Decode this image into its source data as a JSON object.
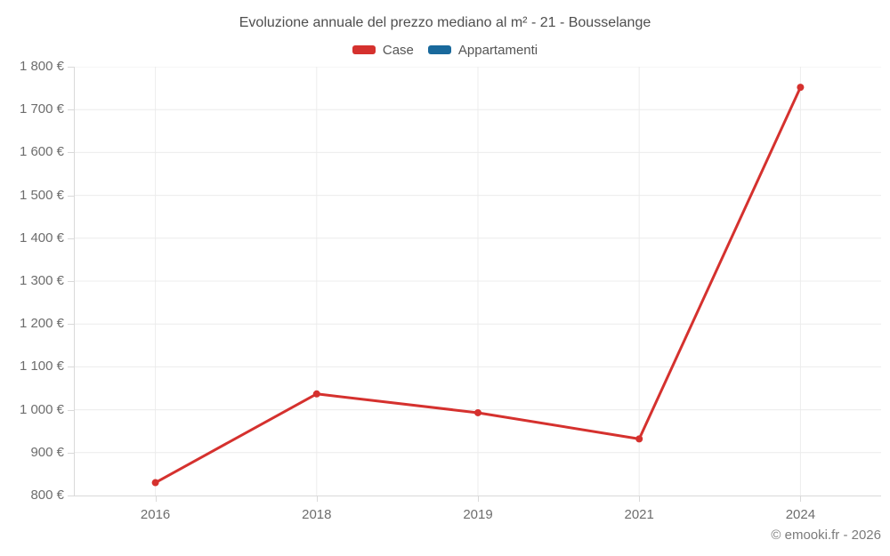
{
  "title": "Evoluzione annuale del prezzo mediano al m² - 21 - Bousselange",
  "footer": "© emooki.fr - 2026",
  "legend": [
    {
      "label": "Case",
      "color": "#d5312e"
    },
    {
      "label": "Appartamenti",
      "color": "#19699c"
    }
  ],
  "chart_data": {
    "type": "line",
    "categories": [
      "2016",
      "2018",
      "2019",
      "2021",
      "2024"
    ],
    "series": [
      {
        "name": "Case",
        "color": "#d5312e",
        "values": [
          830,
          1037,
          993,
          932,
          1752
        ]
      },
      {
        "name": "Appartamenti",
        "color": "#19699c",
        "values": []
      }
    ],
    "title": "Evoluzione annuale del prezzo mediano al m² - 21 - Bousselange",
    "xlabel": "",
    "ylabel": "",
    "ylim": [
      800,
      1800
    ],
    "ytick_step": 100,
    "ytick_labels": [
      "800 €",
      "900 €",
      "1 000 €",
      "1 100 €",
      "1 200 €",
      "1 300 €",
      "1 400 €",
      "1 500 €",
      "1 600 €",
      "1 700 €",
      "1 800 €"
    ],
    "grid": true,
    "legend_position": "top",
    "marker": "circle"
  },
  "colors": {
    "background": "#ffffff",
    "grid": "#ececec",
    "axis": "#d9d9d9",
    "tick": "#d9d9d9",
    "title_text": "#4e4e4e",
    "label_text": "#6d6d6d",
    "footer_text": "#7b7b7b"
  }
}
